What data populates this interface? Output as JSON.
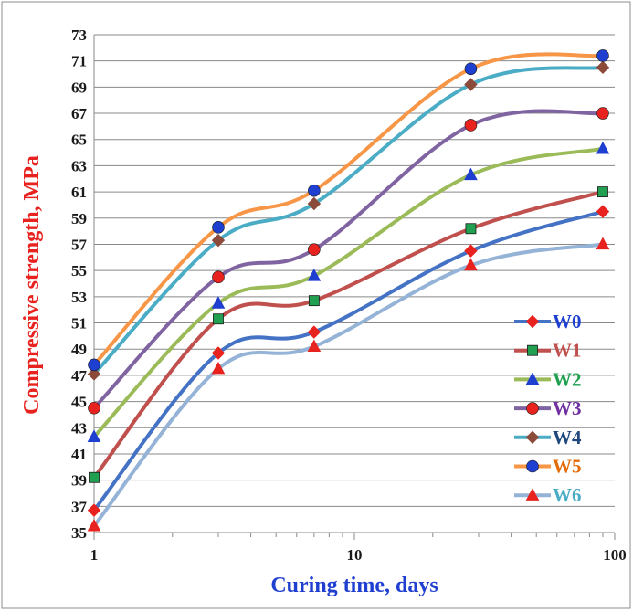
{
  "chart_data": {
    "type": "line",
    "xscale": "log",
    "xlabel": "Curing time, days",
    "ylabel": "Compressive strength, MPa",
    "xlim": [
      1,
      100
    ],
    "ylim": [
      35,
      73
    ],
    "xticks": [
      "1",
      "10",
      "100"
    ],
    "yticks": [
      "35",
      "37",
      "39",
      "41",
      "43",
      "45",
      "47",
      "49",
      "51",
      "53",
      "55",
      "57",
      "59",
      "61",
      "63",
      "65",
      "67",
      "69",
      "71",
      "73"
    ],
    "grid": "horizontal",
    "legend_position": "lower-right",
    "x": [
      1,
      3,
      7,
      28,
      90
    ],
    "series": [
      {
        "name": "W0",
        "values": [
          36.7,
          48.7,
          50.3,
          56.5,
          59.5
        ],
        "color": "#4472c4",
        "marker_color": "#e8231f",
        "marker": "diamond",
        "label_color": "#1f3fd0"
      },
      {
        "name": "W1",
        "values": [
          39.2,
          51.3,
          52.7,
          58.2,
          61.0
        ],
        "color": "#c0504d",
        "marker_color": "#20a050",
        "marker": "square",
        "label_color": "#c0504d"
      },
      {
        "name": "W2",
        "values": [
          42.3,
          52.5,
          54.6,
          62.3,
          64.3
        ],
        "color": "#9bbb59",
        "marker_color": "#1f3fd0",
        "marker": "triangle",
        "label_color": "#20a050"
      },
      {
        "name": "W3",
        "values": [
          44.5,
          54.5,
          56.6,
          66.1,
          67.0
        ],
        "color": "#8064a2",
        "marker_color": "#e8231f",
        "marker": "circle",
        "label_color": "#7030a0"
      },
      {
        "name": "W4",
        "values": [
          47.1,
          57.3,
          60.1,
          69.2,
          70.5
        ],
        "color": "#4bacc6",
        "marker_color": "#8b4a3a",
        "marker": "diamond",
        "label_color": "#1f497d"
      },
      {
        "name": "W5",
        "values": [
          47.8,
          58.3,
          61.1,
          70.4,
          71.4
        ],
        "color": "#f79646",
        "marker_color": "#1f3fd0",
        "marker": "circle",
        "label_color": "#e36c09"
      },
      {
        "name": "W6",
        "values": [
          35.5,
          47.5,
          49.2,
          55.4,
          57.0
        ],
        "color": "#95b3d7",
        "marker_color": "#e8231f",
        "marker": "triangle",
        "label_color": "#4bacc6"
      }
    ]
  }
}
